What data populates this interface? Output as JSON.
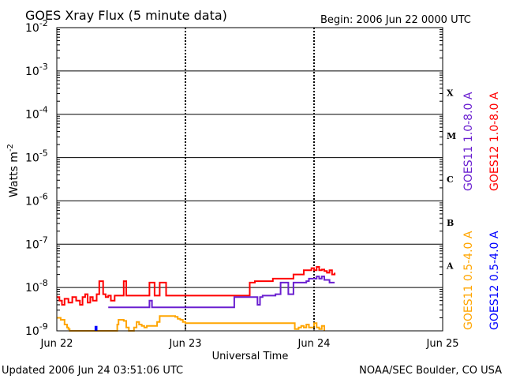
{
  "header": {
    "title": "GOES Xray Flux (5 minute data)",
    "begin": "Begin:  2006 Jun 22 0000 UTC"
  },
  "footer": {
    "updated": "Updated 2006 Jun 24 03:51:06 UTC",
    "credit": "NOAA/SEC Boulder, CO USA"
  },
  "colors": {
    "goes11_long": "#6a1fd0",
    "goes12_long": "#ff0000",
    "goes11_short": "#ffa500",
    "goes12_short": "#0000ff",
    "axes": "#000000"
  },
  "chart_data": {
    "type": "line",
    "title": "GOES Xray Flux (5 minute data)",
    "xlabel": "Universal Time",
    "ylabel": "Watts m-2",
    "yscale": "log",
    "ylim": [
      1e-09,
      0.01
    ],
    "x_ticks": [
      "Jun 22",
      "Jun 23",
      "Jun 24",
      "Jun 25"
    ],
    "x_range_days": [
      0,
      3
    ],
    "y_ticks": [
      {
        "base": "10",
        "exp": "-9",
        "value": 1e-09
      },
      {
        "base": "10",
        "exp": "-8",
        "value": 1e-08
      },
      {
        "base": "10",
        "exp": "-7",
        "value": 1e-07
      },
      {
        "base": "10",
        "exp": "-6",
        "value": 1e-06
      },
      {
        "base": "10",
        "exp": "-5",
        "value": 1e-05
      },
      {
        "base": "10",
        "exp": "-4",
        "value": 0.0001
      },
      {
        "base": "10",
        "exp": "-3",
        "value": 0.001
      },
      {
        "base": "10",
        "exp": "-2",
        "value": 0.01
      }
    ],
    "flare_classes": [
      {
        "label": "A",
        "value": 1e-08
      },
      {
        "label": "B",
        "value": 1e-07
      },
      {
        "label": "C",
        "value": 1e-06
      },
      {
        "label": "M",
        "value": 1e-05
      },
      {
        "label": "X",
        "value": 0.0001
      }
    ],
    "legend": [
      "GOES11 1.0-8.0 A",
      "GOES12 1.0-8.0 A",
      "GOES11 0.5-4.0 A",
      "GOES12 0.5-4.0 A"
    ],
    "series": [
      {
        "name": "GOES12 1.0-8.0 A",
        "color": "#ff0000",
        "x": [
          0,
          0.02,
          0.04,
          0.06,
          0.09,
          0.12,
          0.15,
          0.18,
          0.2,
          0.22,
          0.24,
          0.26,
          0.28,
          0.31,
          0.33,
          0.36,
          0.38,
          0.4,
          0.42,
          0.45,
          0.48,
          0.5,
          0.52,
          0.54,
          0.56,
          0.58,
          0.6,
          0.65,
          0.7,
          0.72,
          0.74,
          0.76,
          0.78,
          0.8,
          0.85,
          0.9,
          0.95,
          1.0,
          1.05,
          1.1,
          1.15,
          1.2,
          1.25,
          1.3,
          1.35,
          1.4,
          1.45,
          1.5,
          1.52,
          1.54,
          1.56,
          1.58,
          1.6,
          1.62,
          1.64,
          1.66,
          1.68,
          1.7,
          1.72,
          1.74,
          1.76,
          1.8,
          1.82,
          1.84,
          1.86,
          1.88,
          1.9,
          1.92,
          1.94,
          1.96,
          1.98,
          2.0,
          2.02,
          2.04,
          2.06,
          2.08,
          2.1,
          2.12,
          2.14,
          2.16
        ],
        "y": [
          6e-09,
          5e-09,
          4e-09,
          5.5e-09,
          4.5e-09,
          6e-09,
          5e-09,
          4e-09,
          6e-09,
          7e-09,
          4.5e-09,
          6e-09,
          5e-09,
          7e-09,
          1.4e-08,
          7e-09,
          6e-09,
          6.5e-09,
          5e-09,
          6.5e-09,
          6.5e-09,
          6.5e-09,
          1.4e-08,
          6.5e-09,
          6.5e-09,
          6.5e-09,
          6.5e-09,
          6.5e-09,
          6.5e-09,
          1.3e-08,
          1.3e-08,
          6.5e-09,
          6.5e-09,
          1.3e-08,
          6.5e-09,
          6.5e-09,
          6.5e-09,
          6.5e-09,
          6.5e-09,
          6.5e-09,
          6.5e-09,
          6.5e-09,
          6.5e-09,
          6.5e-09,
          6.5e-09,
          6.5e-09,
          6.5e-09,
          1.3e-08,
          1.3e-08,
          1.4e-08,
          1.4e-08,
          1.4e-08,
          1.4e-08,
          1.4e-08,
          1.4e-08,
          1.4e-08,
          1.6e-08,
          1.6e-08,
          1.6e-08,
          1.6e-08,
          1.6e-08,
          1.6e-08,
          1.6e-08,
          2e-08,
          2e-08,
          2e-08,
          2e-08,
          2.5e-08,
          2.5e-08,
          2.5e-08,
          2.8e-08,
          2.5e-08,
          3e-08,
          2.5e-08,
          2.6e-08,
          2.4e-08,
          2.2e-08,
          2.5e-08,
          2e-08,
          2.2e-08
        ]
      },
      {
        "name": "GOES11 1.0-8.0 A",
        "color": "#6a1fd0",
        "x": [
          0.4,
          0.5,
          0.6,
          0.7,
          0.72,
          0.74,
          0.8,
          0.85,
          0.9,
          1.0,
          1.1,
          1.2,
          1.3,
          1.35,
          1.38,
          1.4,
          1.42,
          1.44,
          1.46,
          1.48,
          1.5,
          1.52,
          1.54,
          1.56,
          1.58,
          1.6,
          1.62,
          1.64,
          1.66,
          1.7,
          1.72,
          1.74,
          1.76,
          1.78,
          1.8,
          1.82,
          1.84,
          1.86,
          1.88,
          1.9,
          1.92,
          1.94,
          1.96,
          1.98,
          2.0,
          2.02,
          2.04,
          2.06,
          2.08,
          2.1,
          2.12,
          2.14,
          2.16
        ],
        "y": [
          3.5e-09,
          3.5e-09,
          3.5e-09,
          3.5e-09,
          5e-09,
          3.5e-09,
          3.5e-09,
          3.5e-09,
          3.5e-09,
          3.5e-09,
          3.5e-09,
          3.5e-09,
          3.5e-09,
          3.5e-09,
          6e-09,
          6e-09,
          6e-09,
          6e-09,
          6e-09,
          6e-09,
          6e-09,
          6e-09,
          6e-09,
          4e-09,
          6e-09,
          6.5e-09,
          6.5e-09,
          6.5e-09,
          6.5e-09,
          7e-09,
          7e-09,
          1.3e-08,
          1.3e-08,
          1.3e-08,
          7e-09,
          7e-09,
          1.3e-08,
          1.3e-08,
          1.3e-08,
          1.3e-08,
          1.3e-08,
          1.4e-08,
          1.6e-08,
          1.6e-08,
          1.6e-08,
          1.8e-08,
          1.6e-08,
          1.8e-08,
          1.5e-08,
          1.5e-08,
          1.3e-08,
          1.3e-08,
          1.3e-08
        ]
      },
      {
        "name": "GOES11 0.5-4.0 A",
        "color": "#ffa500",
        "x": [
          0,
          0.03,
          0.06,
          0.08,
          0.09,
          0.1,
          0.46,
          0.47,
          0.48,
          0.5,
          0.52,
          0.54,
          0.56,
          0.58,
          0.6,
          0.62,
          0.64,
          0.66,
          0.68,
          0.7,
          0.72,
          0.74,
          0.76,
          0.78,
          0.8,
          0.82,
          0.84,
          0.86,
          0.88,
          0.9,
          0.92,
          0.94,
          0.96,
          0.98,
          1.0,
          1.85,
          1.88,
          1.9,
          1.92,
          1.94,
          1.96,
          1.98,
          2.0,
          2.02,
          2.04,
          2.06,
          2.08
        ],
        "y": [
          2e-09,
          1.8e-09,
          1.4e-09,
          1.2e-09,
          1.1e-09,
          1e-09,
          1e-09,
          1.4e-09,
          1.8e-09,
          1.8e-09,
          1.7e-09,
          1.2e-09,
          1e-09,
          1e-09,
          1.2e-09,
          1.6e-09,
          1.4e-09,
          1.3e-09,
          1.2e-09,
          1.3e-09,
          1.3e-09,
          1.3e-09,
          1.3e-09,
          1.6e-09,
          2.2e-09,
          2.2e-09,
          2.2e-09,
          2.2e-09,
          2.2e-09,
          2.2e-09,
          2.1e-09,
          1.9e-09,
          1.8e-09,
          1.6e-09,
          1.5e-09,
          1.1e-09,
          1.2e-09,
          1.3e-09,
          1.2e-09,
          1.4e-09,
          1.2e-09,
          1.2e-09,
          1.5e-09,
          1.2e-09,
          1.1e-09,
          1.3e-09,
          1e-09
        ]
      },
      {
        "name": "GOES12 0.5-4.0 A",
        "color": "#0000ff",
        "x": [
          0.3,
          0.3,
          0.31,
          0.31
        ],
        "y": [
          1e-09,
          1.25e-09,
          1.25e-09,
          1e-09
        ]
      }
    ]
  }
}
